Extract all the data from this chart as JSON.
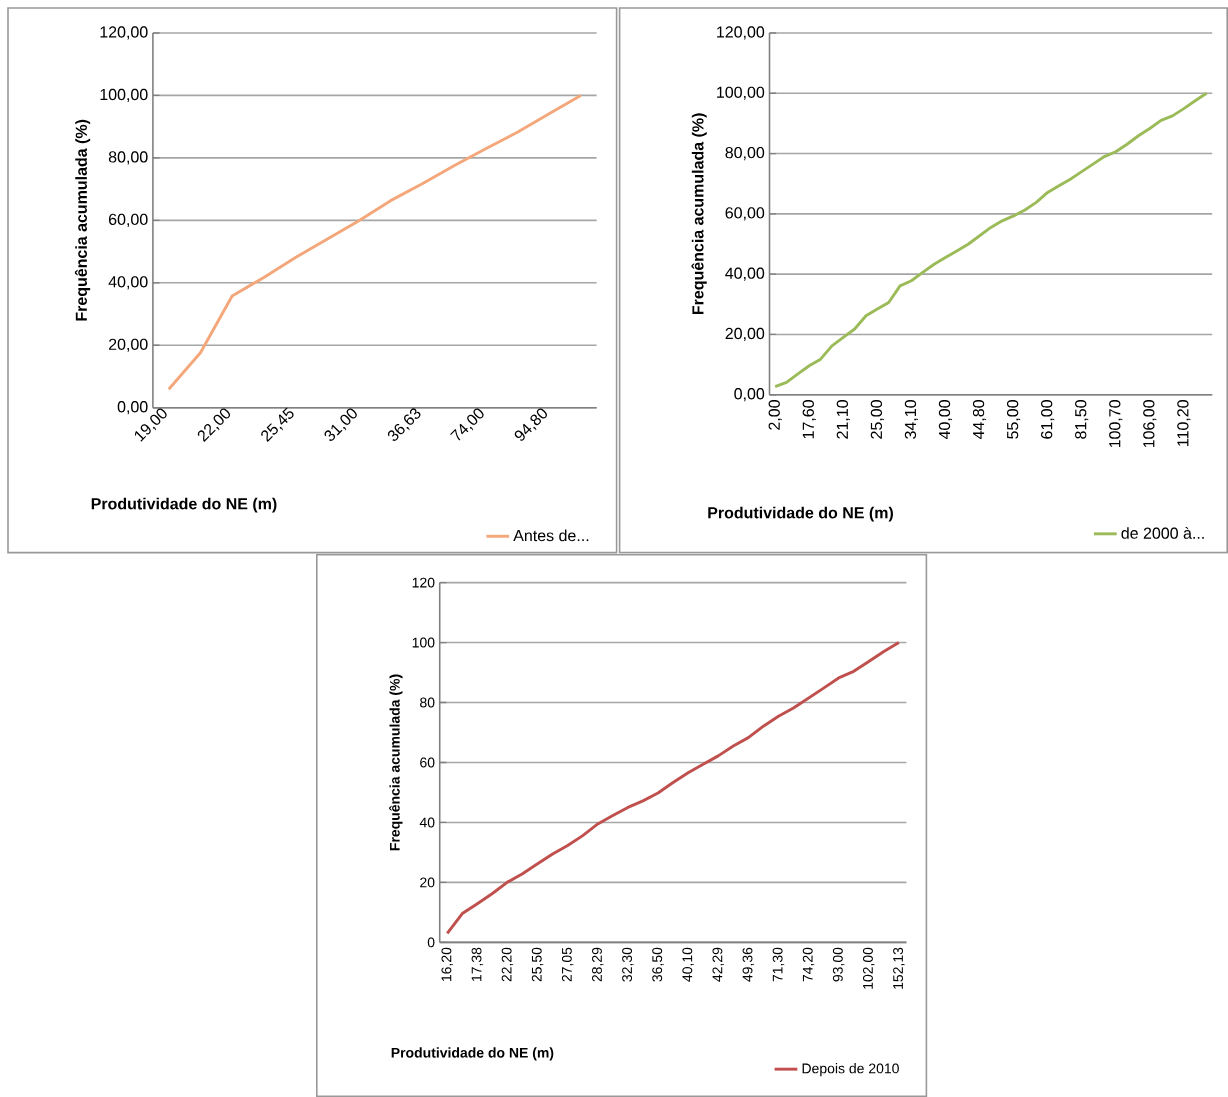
{
  "chart_data": [
    {
      "type": "line",
      "xlabel": "Produtividade do NE (m)",
      "ylabel": "Frequência acumulada (%)",
      "categories": [
        "19,00",
        null,
        "22,00",
        null,
        "25,45",
        null,
        "31,00",
        null,
        "36,63",
        null,
        "74,00",
        null,
        "94,80",
        null
      ],
      "series": [
        {
          "name": "Antes de...",
          "color": "#f4a77a",
          "values": [
            5.9,
            17.6,
            35.8,
            41.7,
            48.1,
            54.0,
            59.9,
            66.3,
            71.7,
            77.5,
            82.9,
            88.2,
            94.1,
            100
          ]
        }
      ],
      "ylim": [
        0,
        120
      ],
      "yticks": [
        {
          "value": 0,
          "label": "0,00"
        },
        {
          "value": 20,
          "label": "20,00"
        },
        {
          "value": 40,
          "label": "40,00"
        },
        {
          "value": 60,
          "label": "60,00"
        },
        {
          "value": 80,
          "label": "80,00"
        },
        {
          "value": 100,
          "label": "100,00"
        },
        {
          "value": 120,
          "label": "120,00"
        }
      ],
      "grid": "y",
      "legend": "bottom right"
    },
    {
      "type": "line",
      "xlabel": "Produtividade do NE (m)",
      "ylabel": "Frequência acumulada (%)",
      "categories": [
        "2,00",
        null,
        null,
        "17,60",
        null,
        null,
        "21,10",
        null,
        null,
        "25,00",
        null,
        null,
        "34,10",
        null,
        null,
        "40,00",
        null,
        null,
        "44,80",
        null,
        null,
        "55,00",
        null,
        null,
        "61,00",
        null,
        null,
        "81,50",
        null,
        null,
        "100,70",
        null,
        null,
        "106,00",
        null,
        null,
        "110,20",
        null,
        null
      ],
      "series": [
        {
          "name": "de 2000 à...",
          "color": "#9bbb59",
          "values": [
            2.7,
            4.1,
            6.9,
            9.6,
            11.8,
            16.2,
            19.0,
            21.8,
            26.2,
            28.4,
            30.6,
            36.1,
            37.8,
            40.6,
            43.3,
            45.5,
            47.7,
            49.9,
            52.7,
            55.5,
            57.7,
            59.3,
            61.3,
            63.8,
            67.1,
            69.3,
            71.5,
            74.0,
            76.5,
            79.0,
            80.6,
            83.1,
            85.9,
            88.3,
            91.0,
            92.5,
            94.9,
            97.5,
            100
          ]
        }
      ],
      "ylim": [
        0,
        120
      ],
      "yticks": [
        {
          "value": 0,
          "label": "0,00"
        },
        {
          "value": 20,
          "label": "20,00"
        },
        {
          "value": 40,
          "label": "40,00"
        },
        {
          "value": 60,
          "label": "60,00"
        },
        {
          "value": 80,
          "label": "80,00"
        },
        {
          "value": 100,
          "label": "100,00"
        },
        {
          "value": 120,
          "label": "120,00"
        }
      ],
      "grid": "y",
      "legend": "bottom right"
    },
    {
      "type": "line",
      "xlabel": "Produtividade do NE (m)",
      "ylabel": "Frequência acumulada (%)",
      "categories": [
        "16,20",
        null,
        "17,38",
        null,
        "22,20",
        null,
        "25,50",
        null,
        "27,05",
        null,
        "28,29",
        null,
        "32,30",
        null,
        "36,50",
        null,
        "40,10",
        null,
        "42,29",
        null,
        "49,36",
        null,
        "71,30",
        null,
        "74,20",
        null,
        "93,00",
        null,
        "102,00",
        null,
        "152,13"
      ],
      "series": [
        {
          "name": "Depois de 2010",
          "color": "#c0504d",
          "values": [
            3.0,
            9.6,
            12.9,
            16.3,
            20.1,
            22.9,
            26.2,
            29.5,
            32.3,
            35.6,
            39.5,
            42.3,
            45.0,
            47.2,
            49.8,
            53.3,
            56.6,
            59.4,
            62.2,
            65.5,
            68.3,
            72.1,
            75.4,
            78.2,
            81.5,
            84.8,
            88.2,
            90.4,
            93.7,
            97.0,
            100
          ]
        }
      ],
      "ylim": [
        0,
        120
      ],
      "yticks": [
        0,
        20,
        40,
        60,
        80,
        100,
        120
      ],
      "grid": "y",
      "legend": "bottom right"
    }
  ]
}
